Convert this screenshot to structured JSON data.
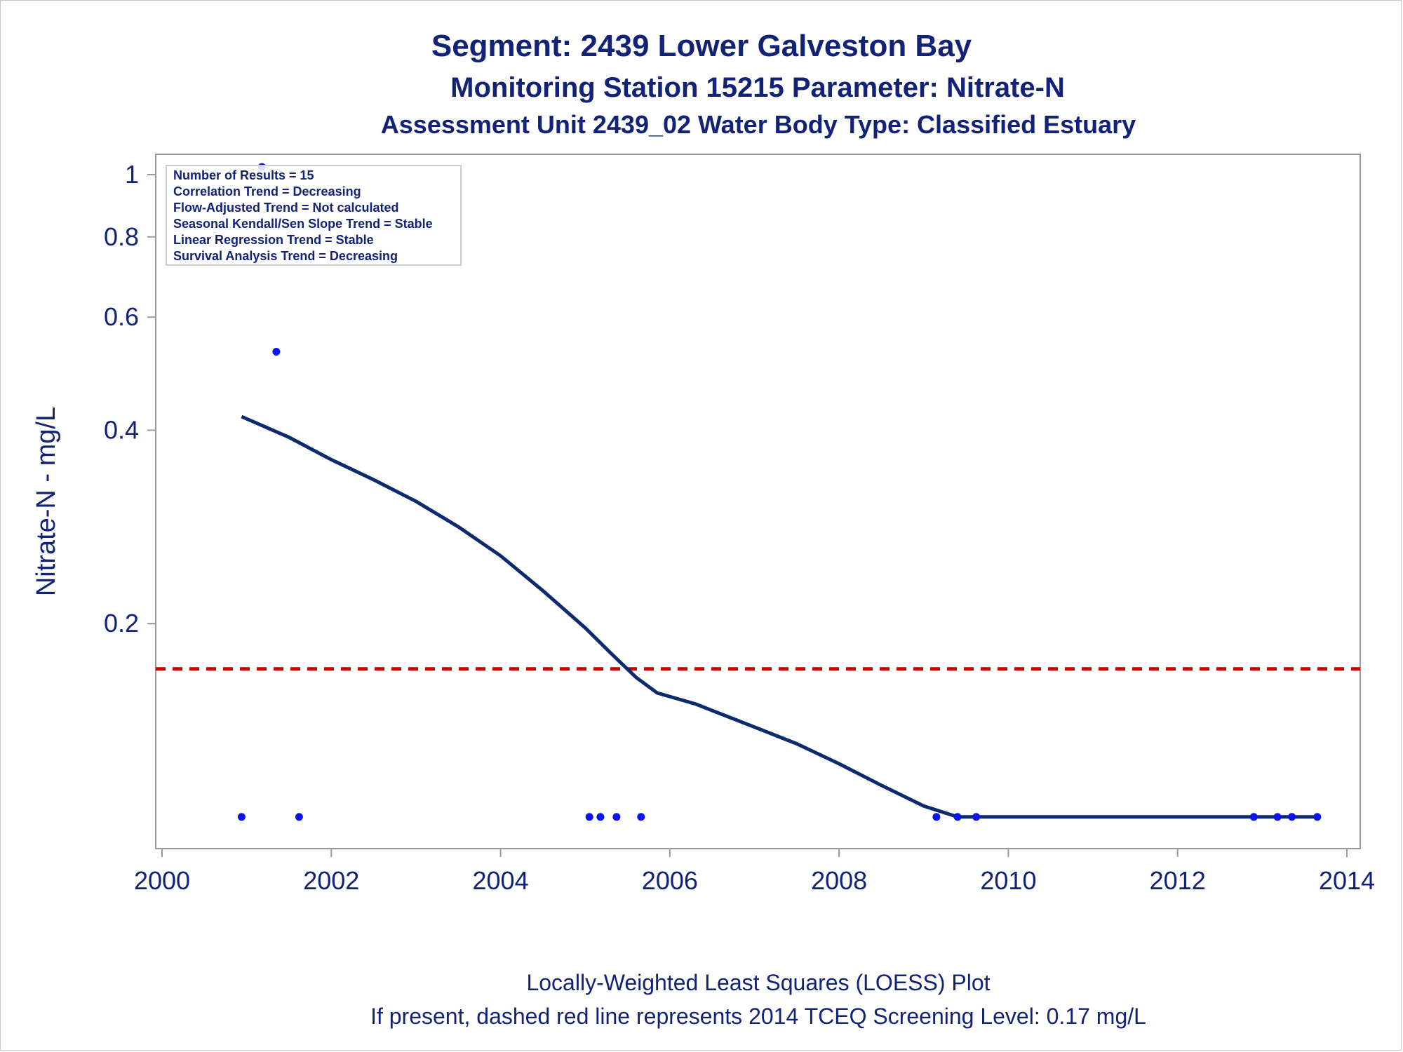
{
  "titles": {
    "line1": "Segment: 2439  Lower Galveston Bay",
    "line2": "Monitoring Station 15215 Parameter: Nitrate-N",
    "line3": "Assessment Unit 2439_02   Water Body Type: Classified Estuary"
  },
  "footnotes": {
    "line1": "Locally-Weighted Least Squares (LOESS) Plot",
    "line2": "If present, dashed red line represents 2014 TCEQ Screening Level: 0.17 mg/L"
  },
  "inset": {
    "lines": [
      "Number of Results = 15",
      "Correlation Trend = Decreasing",
      "Flow-Adjusted Trend = Not calculated",
      "Seasonal Kendall/Sen Slope Trend = Stable",
      "Linear Regression Trend = Stable",
      "Survival Analysis Trend = Decreasing"
    ]
  },
  "colors": {
    "title": "#112277",
    "points": "#0a14f0",
    "loess": "#0d2a6e",
    "screening": "#cc0000",
    "axis": "#999999"
  },
  "chart_data": {
    "type": "scatter",
    "ylabel": "Nitrate-N - mg/L",
    "xlabel": "",
    "xlim": [
      2000,
      2014
    ],
    "ylim": [
      0.092,
      1.0
    ],
    "y_scale": "log",
    "xticks": [
      2000,
      2002,
      2004,
      2006,
      2008,
      2010,
      2012,
      2014
    ],
    "yticks": [
      0.2,
      0.4,
      0.6,
      0.8,
      1
    ],
    "ytick_labels": [
      "0.2",
      "0.4",
      "0.6",
      "0.8",
      "1"
    ],
    "grid": false,
    "screening_level": 0.17,
    "observations": {
      "x": [
        2000.94,
        2001.18,
        2001.35,
        2001.62,
        2005.05,
        2005.18,
        2005.37,
        2005.66,
        2009.15,
        2009.4,
        2009.62,
        2012.9,
        2013.18,
        2013.35,
        2013.65
      ],
      "y": [
        0.1,
        1.04,
        0.53,
        0.1,
        0.1,
        0.1,
        0.1,
        0.1,
        0.1,
        0.1,
        0.1,
        0.1,
        0.1,
        0.1,
        0.1
      ]
    },
    "loess": {
      "x": [
        2000.94,
        2001.5,
        2002.0,
        2002.5,
        2003.0,
        2003.5,
        2004.0,
        2004.5,
        2005.0,
        2005.3,
        2005.6,
        2005.85,
        2006.3,
        2007.0,
        2007.5,
        2008.0,
        2008.5,
        2009.0,
        2009.4,
        2010.0,
        2011.0,
        2012.0,
        2013.0,
        2013.65
      ],
      "y": [
        0.42,
        0.39,
        0.36,
        0.335,
        0.31,
        0.283,
        0.255,
        0.225,
        0.197,
        0.18,
        0.165,
        0.156,
        0.15,
        0.138,
        0.13,
        0.121,
        0.112,
        0.104,
        0.1,
        0.1,
        0.1,
        0.1,
        0.1,
        0.1
      ]
    }
  }
}
